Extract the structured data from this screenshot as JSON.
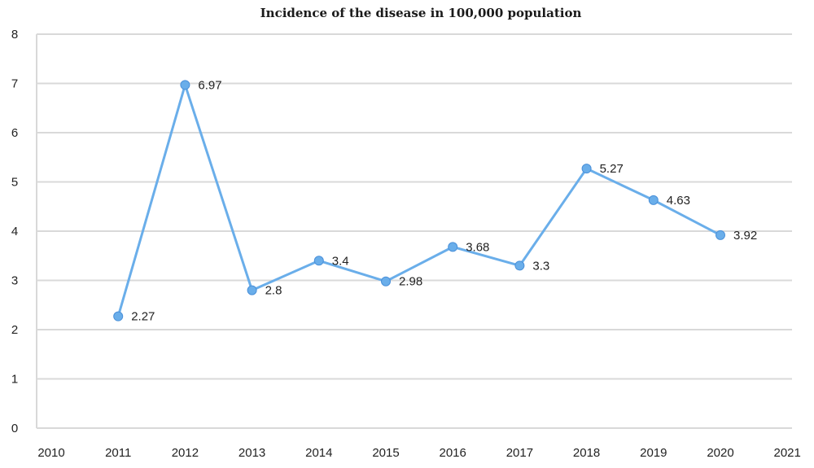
{
  "chart_data": {
    "type": "line",
    "title": "Incidence of the disease in 100,000 population",
    "xlabel": "",
    "ylabel": "",
    "x_ticks": [
      "2010",
      "2011",
      "2012",
      "2013",
      "2014",
      "2015",
      "2016",
      "2017",
      "2018",
      "2019",
      "2020",
      "2021"
    ],
    "y_ticks": [
      "0",
      "1",
      "2",
      "3",
      "4",
      "5",
      "6",
      "7",
      "8"
    ],
    "ylim": [
      0,
      8
    ],
    "grid": true,
    "legend": "none",
    "series": [
      {
        "color": "#6aaeea",
        "points": [
          {
            "x": "2011",
            "y": 2.27,
            "label": "2.27"
          },
          {
            "x": "2012",
            "y": 6.97,
            "label": "6.97"
          },
          {
            "x": "2013",
            "y": 2.8,
            "label": "2.8"
          },
          {
            "x": "2014",
            "y": 3.4,
            "label": "3.4"
          },
          {
            "x": "2015",
            "y": 2.98,
            "label": "2.98"
          },
          {
            "x": "2016",
            "y": 3.68,
            "label": "3.68"
          },
          {
            "x": "2017",
            "y": 3.3,
            "label": "3.3"
          },
          {
            "x": "2018",
            "y": 5.27,
            "label": "5.27"
          },
          {
            "x": "2019",
            "y": 4.63,
            "label": "4.63"
          },
          {
            "x": "2020",
            "y": 3.92,
            "label": "3.92"
          }
        ]
      }
    ]
  }
}
